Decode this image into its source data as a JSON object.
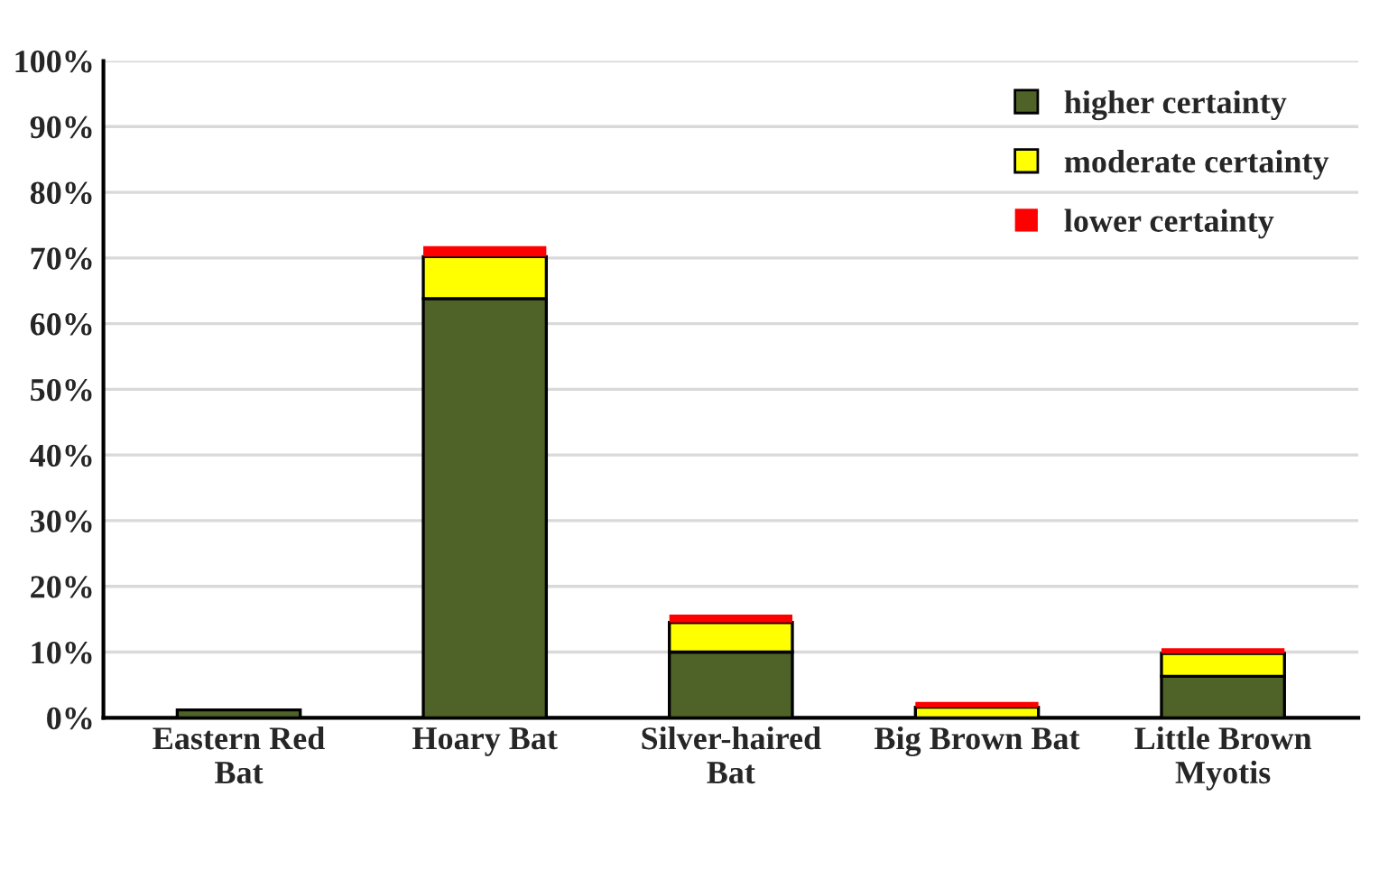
{
  "chart_data": {
    "type": "bar",
    "stacked": true,
    "categories": [
      "Eastern Red\nBat",
      "Hoary Bat",
      "Silver-haired\nBat",
      "Big Brown Bat",
      "Little Brown\nMyotis"
    ],
    "series": [
      {
        "name": "higher certainty",
        "color": "#4f6228",
        "values": [
          1.2,
          63.8,
          10.0,
          0.0,
          6.3
        ]
      },
      {
        "name": "moderate certainty",
        "color": "#ffff00",
        "values": [
          0.0,
          6.4,
          4.5,
          1.6,
          3.5
        ]
      },
      {
        "name": "lower certainty",
        "color": "#ff0000",
        "values": [
          0.0,
          1.6,
          1.2,
          0.8,
          0.8
        ]
      }
    ],
    "ylim": [
      0,
      100
    ],
    "yticks": [
      {
        "value": 0,
        "label": "0%"
      },
      {
        "value": 10,
        "label": "10%"
      },
      {
        "value": 20,
        "label": "20%"
      },
      {
        "value": 30,
        "label": "30%"
      },
      {
        "value": 40,
        "label": "40%"
      },
      {
        "value": 50,
        "label": "50%"
      },
      {
        "value": 60,
        "label": "60%"
      },
      {
        "value": 70,
        "label": "70%"
      },
      {
        "value": 80,
        "label": "80%"
      },
      {
        "value": 90,
        "label": "90%"
      },
      {
        "value": 100,
        "label": "100%"
      }
    ],
    "grid": "y",
    "legend": "top right"
  }
}
